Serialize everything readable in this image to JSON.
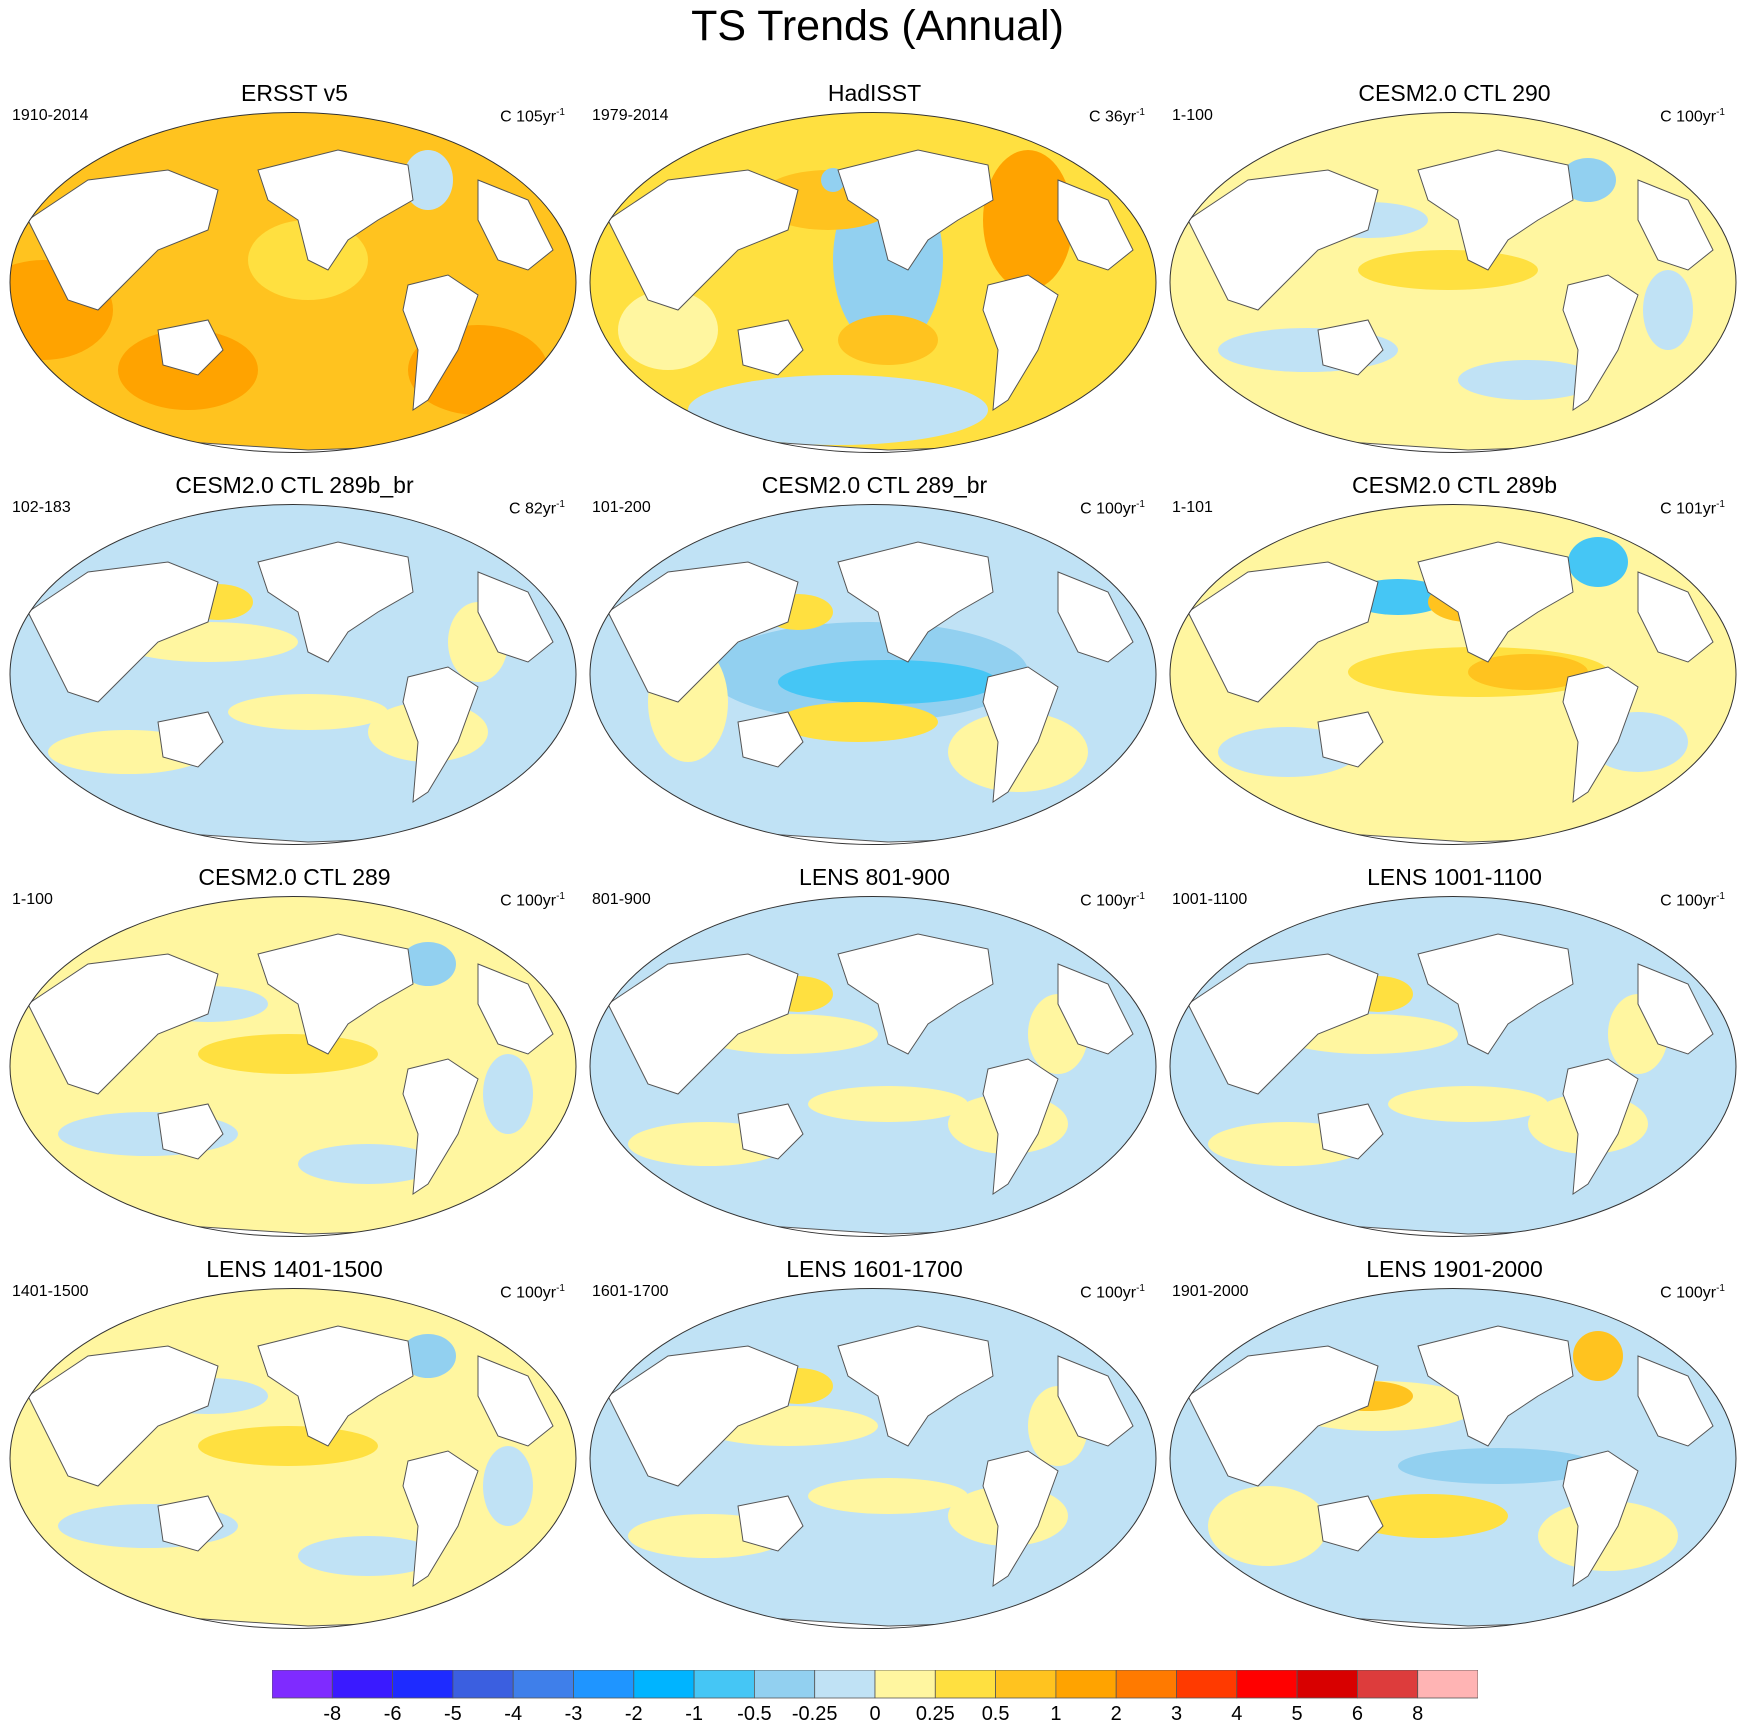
{
  "title": "TS Trends (Annual)",
  "panels": [
    {
      "title": "ERSST v5",
      "period": "1910-2014",
      "units_prefix": "C 105yr",
      "units_exp": "-1",
      "pattern": "warm-strong"
    },
    {
      "title": "HadISST",
      "period": "1979-2014",
      "units_prefix": "C 36yr",
      "units_exp": "-1",
      "pattern": "hadisst"
    },
    {
      "title": "CESM2.0 CTL 290",
      "period": "1-100",
      "units_prefix": "C 100yr",
      "units_exp": "-1",
      "pattern": "mild-warm"
    },
    {
      "title": "CESM2.0 CTL 289b_br",
      "period": "102-183",
      "units_prefix": "C 82yr",
      "units_exp": "-1",
      "pattern": "mild-cool"
    },
    {
      "title": "CESM2.0 CTL 289_br",
      "period": "101-200",
      "units_prefix": "C 100yr",
      "units_exp": "-1",
      "pattern": "lanina"
    },
    {
      "title": "CESM2.0 CTL 289b",
      "period": "1-101",
      "units_prefix": "C 101yr",
      "units_exp": "-1",
      "pattern": "elnino"
    },
    {
      "title": "CESM2.0 CTL 289",
      "period": "1-100",
      "units_prefix": "C 100yr",
      "units_exp": "-1",
      "pattern": "mild-warm"
    },
    {
      "title": "LENS 801-900",
      "period": "801-900",
      "units_prefix": "C 100yr",
      "units_exp": "-1",
      "pattern": "mild-cool"
    },
    {
      "title": "LENS 1001-1100",
      "period": "1001-1100",
      "units_prefix": "C 100yr",
      "units_exp": "-1",
      "pattern": "mild-cool"
    },
    {
      "title": "LENS 1401-1500",
      "period": "1401-1500",
      "units_prefix": "C 100yr",
      "units_exp": "-1",
      "pattern": "mild-warm"
    },
    {
      "title": "LENS 1601-1700",
      "period": "1601-1700",
      "units_prefix": "C 100yr",
      "units_exp": "-1",
      "pattern": "mild-cool"
    },
    {
      "title": "LENS 1901-2000",
      "period": "1901-2000",
      "units_prefix": "C 100yr",
      "units_exp": "-1",
      "pattern": "mixed"
    }
  ],
  "colorbar": {
    "colors": [
      "#7f2bff",
      "#3a1aff",
      "#1e2bff",
      "#3b5fe0",
      "#3f7fea",
      "#1f95ff",
      "#00b4ff",
      "#45c6f5",
      "#92d0f0",
      "#c0e2f5",
      "#fff6a0",
      "#ffe040",
      "#ffc31f",
      "#ffa300",
      "#ff7a00",
      "#ff3a00",
      "#ff0000",
      "#d80000",
      "#dd3c3c",
      "#ffb4b4"
    ],
    "labels": [
      "-8",
      "-6",
      "-5",
      "-4",
      "-3",
      "-2",
      "-1",
      "-0.5",
      "-0.25",
      "0",
      "0.25",
      "0.5",
      "1",
      "2",
      "3",
      "4",
      "5",
      "6",
      "8"
    ]
  }
}
